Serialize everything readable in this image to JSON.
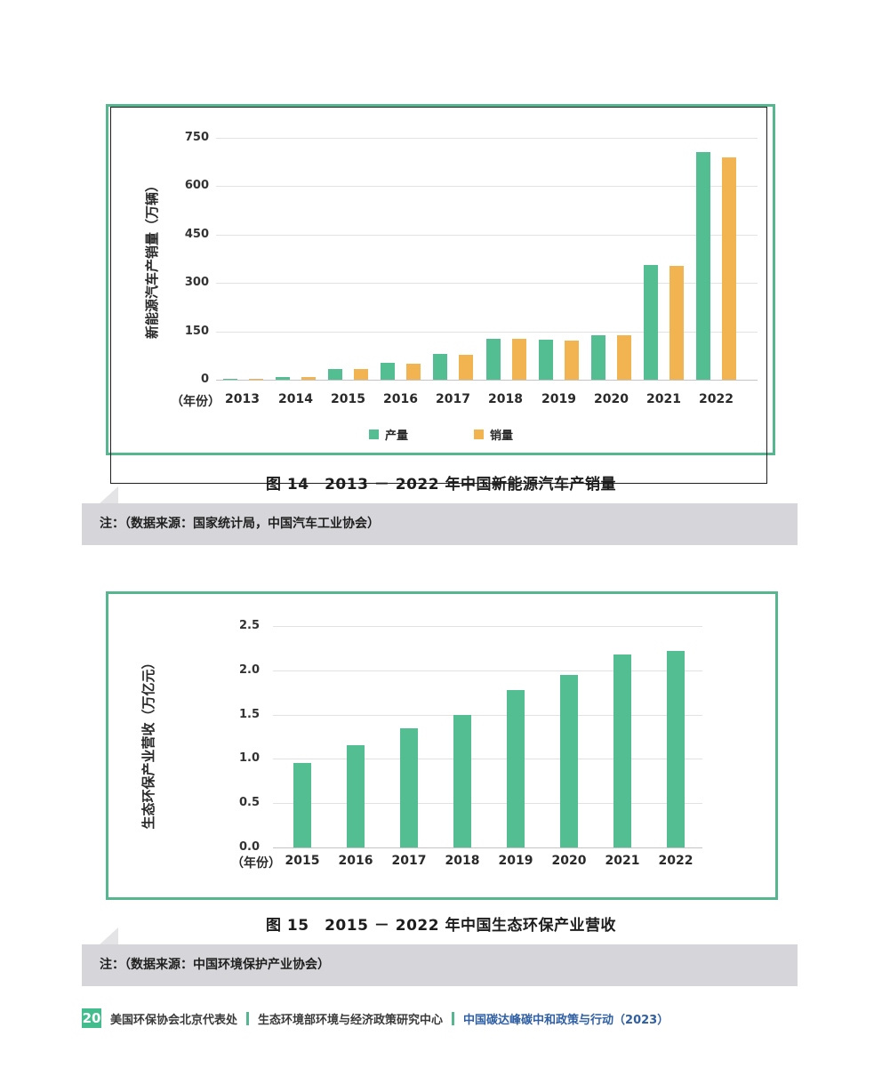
{
  "colors": {
    "green": "#53be92",
    "orange": "#f2b450",
    "frame_green": "#56b690",
    "frame_black": "#1f1f1f",
    "note_bg": "#d6d6da",
    "note_tail": "#e4e4e7",
    "grid": "#e2e2e2",
    "zero_axis": "#c4c4c6",
    "footer_blue": "#2e5fa3",
    "badge_green": "#44bd8e"
  },
  "figures": [
    {
      "caption": "图 14　2013 － 2022 年中国新能源汽车产销量",
      "note": "注：（数据来源：国家统计局，中国汽车工业协会）"
    },
    {
      "caption": "图 15　2015 － 2022 年中国生态环保产业营收",
      "note": "注：（数据来源：中国环境保护产业协会）"
    }
  ],
  "chart_data": [
    {
      "type": "bar",
      "title": "图 14　2013 － 2022 年中国新能源汽车产销量",
      "categories": [
        "2013",
        "2014",
        "2015",
        "2016",
        "2017",
        "2018",
        "2019",
        "2020",
        "2021",
        "2022"
      ],
      "series": [
        {
          "name": "产量",
          "color": "#53be92",
          "values": [
            1.8,
            7.8,
            34.0,
            51.7,
            79.4,
            127.0,
            124.2,
            136.6,
            354.5,
            705.8
          ]
        },
        {
          "name": "销量",
          "color": "#f2b450",
          "values": [
            1.8,
            7.5,
            33.1,
            50.7,
            77.7,
            125.6,
            120.6,
            136.7,
            352.1,
            688.7
          ]
        }
      ],
      "xlabel": "（年份）",
      "ylabel": "新能源汽车产销量（万辆）",
      "ylim": [
        0,
        750
      ],
      "yticks": [
        0,
        150,
        300,
        450,
        600,
        750
      ],
      "ytick_labels": [
        "0",
        "150",
        "300",
        "450",
        "600",
        "750"
      ],
      "grid": true,
      "legend": true,
      "legend_position": "bottom"
    },
    {
      "type": "bar",
      "title": "图 15　2015 － 2022 年中国生态环保产业营收",
      "categories": [
        "2015",
        "2016",
        "2017",
        "2018",
        "2019",
        "2020",
        "2021",
        "2022"
      ],
      "series": [
        {
          "name": "营收",
          "color": "#53be92",
          "values": [
            0.95,
            1.15,
            1.35,
            1.5,
            1.78,
            1.95,
            2.18,
            2.22
          ]
        }
      ],
      "xlabel": "（年份）",
      "ylabel": "生态环保产业营收（万亿元）",
      "ylim": [
        0,
        2.5
      ],
      "yticks": [
        0,
        0.5,
        1.0,
        1.5,
        2.0,
        2.5
      ],
      "ytick_labels": [
        "0.0",
        "0.5",
        "1.0",
        "1.5",
        "2.0",
        "2.5"
      ],
      "grid": true,
      "legend": false
    }
  ],
  "footer": {
    "page_number": "20",
    "org1": "美国环保协会北京代表处",
    "org2": "生态环境部环境与经济政策研究中心",
    "report_title": "中国碳达峰碳中和政策与行动（2023）",
    "separator": "|"
  }
}
